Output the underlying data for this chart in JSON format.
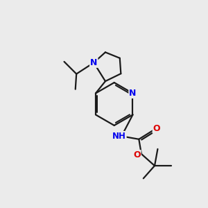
{
  "background_color": "#ebebeb",
  "bond_color": "#1a1a1a",
  "N_color": "#0000ee",
  "O_color": "#dd0000",
  "line_width": 1.6,
  "figsize": [
    3.0,
    3.0
  ],
  "dpi": 100,
  "xlim": [
    0,
    10
  ],
  "ylim": [
    0,
    10
  ]
}
